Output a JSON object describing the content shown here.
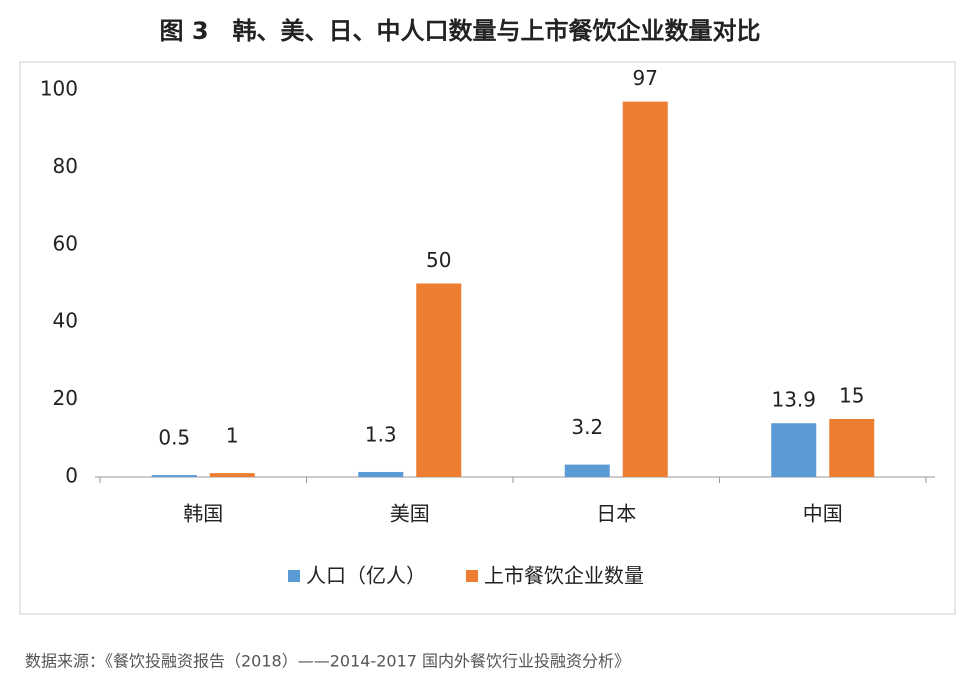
{
  "chart_data": {
    "type": "bar",
    "title": "图 3　韩、美、日、中人口数量与上市餐饮企业数量对比",
    "categories": [
      "韩国",
      "美国",
      "日本",
      "中国"
    ],
    "series": [
      {
        "name": "人口（亿人）",
        "color": "#5b9bd5",
        "values": [
          0.5,
          1.3,
          3.2,
          13.9
        ]
      },
      {
        "name": "上市餐饮企业数量",
        "color": "#ed7d31",
        "values": [
          1,
          50,
          97,
          15
        ]
      }
    ],
    "ylim": [
      0,
      100
    ],
    "yticks": [
      0,
      20,
      40,
      60,
      80,
      100
    ],
    "grid": false,
    "legend": "bottom",
    "source": "数据来源：《餐饮投融资报告（2018）——2014-2017 国内外餐饮行业投融资分析》"
  }
}
